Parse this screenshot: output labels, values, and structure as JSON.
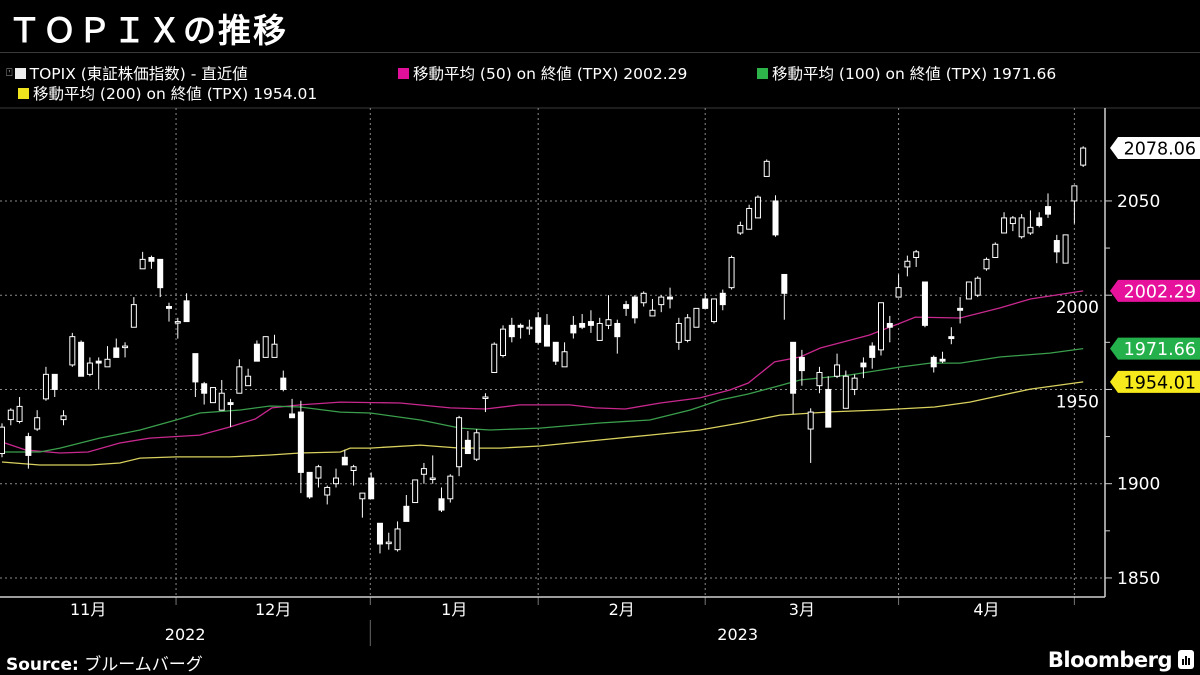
{
  "title": "ＴＯＰＩＸの推移",
  "legend": [
    {
      "label": "TOPIX (東証株価指数) - 直近値",
      "color": "#eeeeee",
      "icon": "candlestick-icon"
    },
    {
      "label": "移動平均 (50) on 終値 (TPX) 2002.29",
      "color": "#e0109a"
    },
    {
      "label": "移動平均 (100) on 終値 (TPX) 1971.66",
      "color": "#2db34a"
    },
    {
      "label": "移動平均 (200) on 終値 (TPX) 1954.01",
      "color": "#f0e41e"
    }
  ],
  "footer": {
    "source_label": "Source:",
    "source_value": "ブルームバーグ",
    "logo": "Bloomberg"
  },
  "chart_data": {
    "type": "candlestick",
    "title": "ＴＯＰＩＸの推移",
    "ylim": [
      1835,
      2103
    ],
    "y_ticks": [
      2050,
      2000,
      1950,
      1900,
      1850
    ],
    "y_minor_ticks": [
      2025,
      1975,
      1925,
      1875
    ],
    "y_axis_position": "right",
    "grid": true,
    "x_months": [
      {
        "label": "11月",
        "start_index": -2
      },
      {
        "label": "12月",
        "start_index": 19.8
      },
      {
        "label": "1月",
        "start_index": 41.9
      },
      {
        "label": "2月",
        "start_index": 61
      },
      {
        "label": "3月",
        "start_index": 80
      },
      {
        "label": "4月",
        "start_index": 102
      },
      {
        "label": "",
        "start_index": 122
      }
    ],
    "x_years": [
      {
        "label": "2022",
        "start_index": -2,
        "end_index": 41.9
      },
      {
        "label": "2023",
        "start_index": 41.9,
        "end_index": 125.5
      }
    ],
    "candles_ohlc": [
      [
        1916,
        1932,
        1914,
        1930
      ],
      [
        1934,
        1940,
        1931,
        1939
      ],
      [
        1933,
        1946,
        1932,
        1941
      ],
      [
        1925,
        1927,
        1908,
        1915
      ],
      [
        1929,
        1939,
        1928,
        1935
      ],
      [
        1945,
        1962,
        1944,
        1958
      ],
      [
        1958,
        1958,
        1946,
        1950
      ],
      [
        1934,
        1939,
        1931,
        1936
      ],
      [
        1963,
        1980,
        1962,
        1978
      ],
      [
        1975,
        1976,
        1957,
        1957
      ],
      [
        1958,
        1967,
        1957,
        1964
      ],
      [
        1965,
        1967,
        1950,
        1964
      ],
      [
        1962,
        1973,
        1962,
        1966
      ],
      [
        1972,
        1977,
        1967,
        1967
      ],
      [
        1973,
        1975,
        1967,
        1973
      ],
      [
        1983,
        1999,
        1983,
        1995
      ],
      [
        2014,
        2023,
        2014,
        2019
      ],
      [
        2020,
        2021,
        2014,
        2018
      ],
      [
        2019,
        2019,
        1999,
        2004
      ],
      [
        1994,
        1996,
        1986,
        1993
      ],
      [
        1986,
        1988,
        1977,
        1986
      ],
      [
        1997,
        2001,
        1986,
        1986
      ],
      [
        1969,
        1969,
        1946,
        1954
      ],
      [
        1953,
        1954,
        1942,
        1948
      ],
      [
        1943,
        1951,
        1943,
        1951
      ],
      [
        1939,
        1955,
        1939,
        1948
      ],
      [
        1943,
        1945,
        1930,
        1942
      ],
      [
        1948,
        1966,
        1948,
        1962
      ],
      [
        1952,
        1961,
        1952,
        1957
      ],
      [
        1974,
        1976,
        1965,
        1965
      ],
      [
        1967,
        1978,
        1967,
        1978
      ],
      [
        1967,
        1979,
        1967,
        1974
      ],
      [
        1956,
        1960,
        1949,
        1950
      ],
      [
        1937,
        1945,
        1935,
        1935
      ],
      [
        1938,
        1944,
        1895,
        1906
      ],
      [
        1906,
        1906,
        1892,
        1893
      ],
      [
        1903,
        1910,
        1898,
        1909
      ],
      [
        1894,
        1899,
        1889,
        1898
      ],
      [
        1900,
        1908,
        1898,
        1903
      ],
      [
        1914,
        1918,
        1910,
        1910
      ],
      [
        1907,
        1910,
        1899,
        1909
      ],
      [
        1892,
        1895,
        1882,
        1895
      ],
      [
        1903,
        1906,
        1892,
        1892
      ],
      [
        1879,
        1879,
        1863,
        1868
      ],
      [
        1869,
        1874,
        1865,
        1869
      ],
      [
        1865,
        1880,
        1864,
        1876
      ],
      [
        1888,
        1894,
        1880,
        1880
      ],
      [
        1890,
        1902,
        1890,
        1902
      ],
      [
        1905,
        1911,
        1900,
        1908
      ],
      [
        1903,
        1915,
        1900,
        1903
      ],
      [
        1892,
        1898,
        1885,
        1886
      ],
      [
        1892,
        1905,
        1890,
        1904
      ],
      [
        1909,
        1936,
        1904,
        1935
      ],
      [
        1923,
        1928,
        1916,
        1916
      ],
      [
        1913,
        1929,
        1912,
        1927
      ],
      [
        1946,
        1948,
        1938,
        1946
      ],
      [
        1959,
        1975,
        1959,
        1974
      ],
      [
        1968,
        1984,
        1967,
        1982
      ],
      [
        1984,
        1988,
        1975,
        1978
      ],
      [
        1984,
        1985,
        1977,
        1983
      ],
      [
        1983,
        1987,
        1979,
        1983
      ],
      [
        1988,
        1991,
        1974,
        1975
      ],
      [
        1984,
        1990,
        1973,
        1973
      ],
      [
        1975,
        1975,
        1963,
        1965
      ],
      [
        1962,
        1975,
        1962,
        1970
      ],
      [
        1984,
        1989,
        1977,
        1980
      ],
      [
        1985,
        1990,
        1982,
        1983
      ],
      [
        1986,
        1992,
        1980,
        1984
      ],
      [
        1976,
        1988,
        1976,
        1985
      ],
      [
        1984,
        2000,
        1982,
        1987
      ],
      [
        1985,
        1987,
        1969,
        1978
      ],
      [
        1995,
        1997,
        1989,
        1993
      ],
      [
        1999,
        2000,
        1985,
        1988
      ],
      [
        1996,
        2002,
        1994,
        2001
      ],
      [
        1989,
        1998,
        1989,
        1992
      ],
      [
        1995,
        2000,
        1991,
        1999
      ],
      [
        1999,
        2004,
        1993,
        1998
      ],
      [
        1975,
        1988,
        1971,
        1985
      ],
      [
        1976,
        1990,
        1975,
        1988
      ],
      [
        1983,
        1993,
        1983,
        1993
      ],
      [
        1998,
        2001,
        1993,
        1993
      ],
      [
        1986,
        1998,
        1985,
        1998
      ],
      [
        2001,
        2003,
        1992,
        1995
      ],
      [
        2004,
        2021,
        2003,
        2020
      ],
      [
        2033,
        2039,
        2032,
        2037
      ],
      [
        2035,
        2048,
        2035,
        2046
      ],
      [
        2041,
        2053,
        2041,
        2052
      ],
      [
        2063,
        2072,
        2063,
        2071
      ],
      [
        2050,
        2053,
        2031,
        2032
      ],
      [
        2011,
        2011,
        1987,
        2001
      ],
      [
        1975,
        1975,
        1937,
        1948
      ],
      [
        1967,
        1971,
        1952,
        1960
      ],
      [
        1929,
        1940,
        1911,
        1938
      ],
      [
        1952,
        1962,
        1948,
        1959
      ],
      [
        1950,
        1957,
        1930,
        1930
      ],
      [
        1957,
        1969,
        1956,
        1963
      ],
      [
        1940,
        1960,
        1940,
        1957
      ],
      [
        1950,
        1958,
        1947,
        1956
      ],
      [
        1964,
        1967,
        1956,
        1962
      ],
      [
        1973,
        1975,
        1961,
        1967
      ],
      [
        1971,
        1996,
        1968,
        1996
      ],
      [
        1985,
        1989,
        1975,
        1983
      ],
      [
        1999,
        2011,
        1999,
        2004
      ],
      [
        2015,
        2021,
        2010,
        2018
      ],
      [
        2020,
        2024,
        2015,
        2023
      ],
      [
        2007,
        2007,
        1983,
        1984
      ],
      [
        1967,
        1968,
        1959,
        1962
      ],
      [
        1966,
        1970,
        1964,
        1965
      ],
      [
        1978,
        1983,
        1974,
        1977
      ],
      [
        1993,
        1999,
        1985,
        1992
      ],
      [
        1998,
        2007,
        1998,
        2007
      ],
      [
        2000,
        2010,
        1999,
        2009
      ],
      [
        2014,
        2020,
        2013,
        2019
      ],
      [
        2020,
        2028,
        2020,
        2027
      ],
      [
        2033,
        2044,
        2033,
        2041
      ],
      [
        2038,
        2042,
        2034,
        2041
      ],
      [
        2031,
        2043,
        2030,
        2041
      ],
      [
        2033,
        2045,
        2032,
        2036
      ],
      [
        2041,
        2044,
        2036,
        2037
      ],
      [
        2047,
        2054,
        2041,
        2043
      ],
      [
        2029,
        2032,
        2017,
        2023
      ],
      [
        2017,
        2032,
        2017,
        2032
      ],
      [
        2050,
        2058,
        2038,
        2058
      ],
      [
        2069,
        2079,
        2068,
        2078.06
      ]
    ],
    "series": [
      {
        "name": "移動平均 (50) on 終値 (TPX)",
        "last": "2002.29",
        "color": "#c8288e",
        "points": [
          [
            0,
            1922.1
          ],
          [
            2.7,
            1917.9
          ],
          [
            6.6,
            1916.3
          ],
          [
            9.8,
            1916.8
          ],
          [
            13.4,
            1921.6
          ],
          [
            16.8,
            1924.2
          ],
          [
            22.5,
            1925.8
          ],
          [
            25.9,
            1930.1
          ],
          [
            28.8,
            1934.3
          ],
          [
            30.7,
            1940.2
          ],
          [
            33.9,
            1941.8
          ],
          [
            38.5,
            1943.3
          ],
          [
            45.3,
            1942.8
          ],
          [
            51,
            1940.2
          ],
          [
            55,
            1939.6
          ],
          [
            58.9,
            1941.8
          ],
          [
            64.6,
            1941.8
          ],
          [
            67.5,
            1940.2
          ],
          [
            70.9,
            1939.6
          ],
          [
            74.9,
            1942.8
          ],
          [
            79.4,
            1945.5
          ],
          [
            82.8,
            1949.7
          ],
          [
            84.9,
            1953.4
          ],
          [
            87.9,
            1964.6
          ],
          [
            90.8,
            1967.2
          ],
          [
            93.1,
            1972.0
          ],
          [
            96.5,
            1976.2
          ],
          [
            98.7,
            1978.9
          ],
          [
            102.2,
            1985.2
          ],
          [
            103.9,
            1988.4
          ],
          [
            109,
            1987.9
          ],
          [
            113.5,
            1993.2
          ],
          [
            117,
            1998.0
          ],
          [
            123,
            2002.29
          ]
        ]
      },
      {
        "name": "移動平均 (100) on 終値 (TPX)",
        "last": "1971.66",
        "color": "#3a9e4c",
        "points": [
          [
            0,
            1916.8
          ],
          [
            4.3,
            1916.8
          ],
          [
            6.6,
            1918.9
          ],
          [
            11.1,
            1924.2
          ],
          [
            15.7,
            1928.5
          ],
          [
            19.8,
            1933.8
          ],
          [
            22.5,
            1937.5
          ],
          [
            27.1,
            1939.1
          ],
          [
            30.5,
            1941.2
          ],
          [
            33.9,
            1940.7
          ],
          [
            38.5,
            1938.0
          ],
          [
            41.9,
            1937.5
          ],
          [
            47.6,
            1933.8
          ],
          [
            52.1,
            1929.5
          ],
          [
            55.5,
            1928.5
          ],
          [
            61.2,
            1929.5
          ],
          [
            68,
            1932.2
          ],
          [
            73.7,
            1933.8
          ],
          [
            78.3,
            1939.1
          ],
          [
            81.7,
            1944.4
          ],
          [
            84.9,
            1947.6
          ],
          [
            87.9,
            1951.3
          ],
          [
            90.8,
            1955.0
          ],
          [
            96.5,
            1957.7
          ],
          [
            102.2,
            1961.9
          ],
          [
            105.6,
            1964.0
          ],
          [
            109,
            1964.0
          ],
          [
            113.5,
            1967.2
          ],
          [
            119.2,
            1969.3
          ],
          [
            123,
            1971.66
          ]
        ]
      },
      {
        "name": "移動平均 (200) on 終値 (TPX)",
        "last": "1954.01",
        "color": "#d9d15e",
        "points": [
          [
            0,
            1911.5
          ],
          [
            4.3,
            1909.9
          ],
          [
            10,
            1909.9
          ],
          [
            13.4,
            1911.0
          ],
          [
            15.7,
            1913.6
          ],
          [
            19.8,
            1914.2
          ],
          [
            25.9,
            1914.2
          ],
          [
            30.5,
            1915.2
          ],
          [
            33.9,
            1916.3
          ],
          [
            38.5,
            1916.8
          ],
          [
            39.6,
            1918.9
          ],
          [
            41.9,
            1918.9
          ],
          [
            47.6,
            1920.5
          ],
          [
            52.1,
            1918.9
          ],
          [
            56.7,
            1918.9
          ],
          [
            61.2,
            1920.0
          ],
          [
            68,
            1923.2
          ],
          [
            73.7,
            1925.8
          ],
          [
            79.4,
            1928.5
          ],
          [
            84,
            1932.2
          ],
          [
            88.5,
            1936.4
          ],
          [
            94.2,
            1938.1
          ],
          [
            99.9,
            1939.1
          ],
          [
            106.1,
            1940.7
          ],
          [
            110.1,
            1943.3
          ],
          [
            117,
            1950.2
          ],
          [
            123,
            1954.01
          ]
        ]
      }
    ],
    "price_badges": [
      {
        "value": "2078.06",
        "bg": "#ffffff",
        "fg": "#000000"
      },
      {
        "value": "2002.29",
        "bg": "#e6129b",
        "fg": "#ffffff"
      },
      {
        "value": "1971.66",
        "bg": "#24b04a",
        "fg": "#ffffff"
      },
      {
        "value": "1954.01",
        "bg": "#f7ea1c",
        "fg": "#000000"
      }
    ]
  }
}
